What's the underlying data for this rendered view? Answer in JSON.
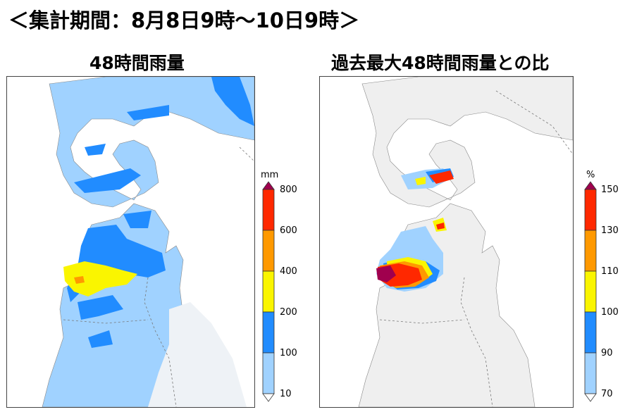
{
  "header": {
    "period_text": "＜集計期間：8月8日9時〜10日9時＞"
  },
  "maps": [
    {
      "title": "48時間雨量",
      "colorbar": {
        "unit": "mm",
        "ticks": [
          "800",
          "600",
          "400",
          "200",
          "100",
          "10"
        ],
        "colors": [
          "#a0004e",
          "#ff2800",
          "#ff9900",
          "#faf500",
          "#218cff",
          "#a0d2ff"
        ]
      }
    },
    {
      "title": "過去最大48時間雨量との比",
      "colorbar": {
        "unit": "%",
        "ticks": [
          "150",
          "130",
          "110",
          "100",
          "90",
          "70"
        ],
        "colors": [
          "#a0004e",
          "#ff2800",
          "#ff9900",
          "#faf500",
          "#218cff",
          "#a0d2ff"
        ]
      }
    }
  ]
}
